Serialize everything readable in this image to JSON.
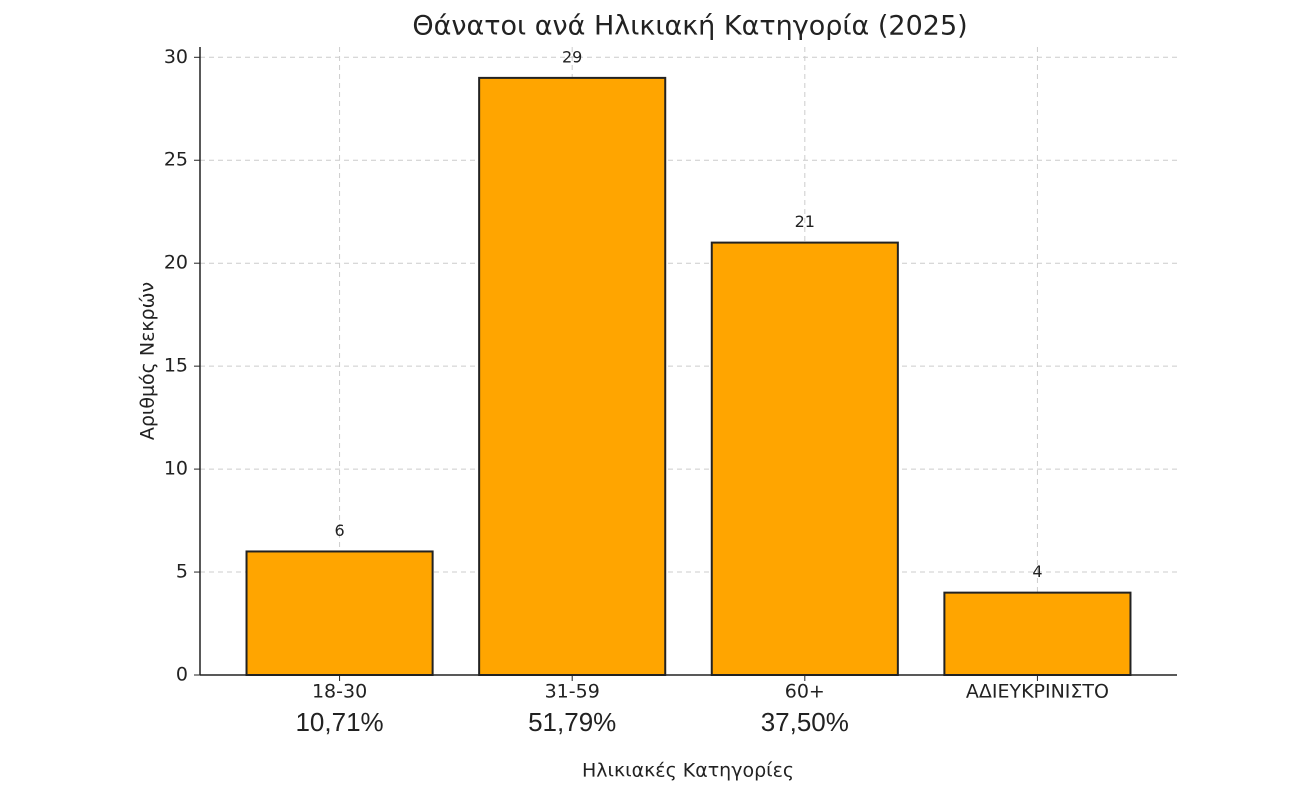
{
  "chart_data": {
    "type": "bar",
    "title": "Θάνατοι ανά Ηλικιακή Κατηγορία (2025)",
    "x_label": "Ηλικιακές Κατηγορίες",
    "y_label": "Αριθμός Νεκρών",
    "categories": [
      "18-30",
      "31-59",
      "60+",
      "ΑΔΙΕΥΚΡΙΝΙΣΤΟ"
    ],
    "values": [
      6,
      29,
      21,
      4
    ],
    "percent_labels": [
      "10,71%",
      "51,79%",
      "37,50%",
      null
    ],
    "color": "#FFA500",
    "edge_color": "#222222",
    "ylim": [
      0,
      30.5
    ],
    "yticks": [
      0,
      5,
      10,
      15,
      20,
      25,
      30
    ],
    "grid": true
  }
}
